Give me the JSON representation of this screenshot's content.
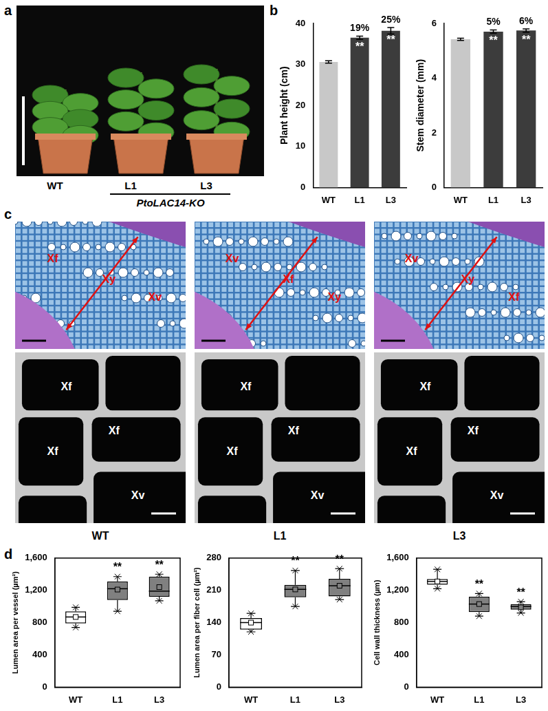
{
  "panel_labels": [
    "a",
    "b",
    "c",
    "d"
  ],
  "photo": {
    "genotypes": [
      "WT",
      "L1",
      "L3"
    ],
    "group_label": "PtoLAC14-KO"
  },
  "micrographs": [
    {
      "name": "WT",
      "light_labels": [
        "Xf",
        "Xy",
        "Xv"
      ],
      "sem_labels": [
        "Xf",
        "Xf",
        "Xf",
        "Xv"
      ]
    },
    {
      "name": "L1",
      "light_labels": [
        "Xv",
        "Xf",
        "Xy"
      ],
      "sem_labels": [
        "Xf",
        "Xf",
        "Xf",
        "Xv"
      ]
    },
    {
      "name": "L3",
      "light_labels": [
        "Xv",
        "Xy",
        "Xf"
      ],
      "sem_labels": [
        "Xf",
        "Xf",
        "Xf",
        "Xv"
      ]
    }
  ],
  "chart_data": [
    {
      "type": "bar",
      "categories": [
        "WT",
        "L1",
        "L3"
      ],
      "values": [
        30.6,
        36.5,
        38.2
      ],
      "errors": [
        0.3,
        0.4,
        0.8
      ],
      "colors": [
        "#c8c8c8",
        "#3c3c3c",
        "#3c3c3c"
      ],
      "y_label": "Plant height (cm)",
      "ylim": [
        0,
        40
      ],
      "yticks": [
        0,
        10,
        20,
        30,
        40
      ],
      "annotations": [
        null,
        "19%",
        "25%"
      ],
      "significance": [
        null,
        "**",
        "**"
      ]
    },
    {
      "type": "bar",
      "categories": [
        "WT",
        "L1",
        "L3"
      ],
      "values": [
        5.42,
        5.7,
        5.74
      ],
      "errors": [
        0.04,
        0.06,
        0.06
      ],
      "colors": [
        "#c8c8c8",
        "#3c3c3c",
        "#3c3c3c"
      ],
      "y_label": "Stem diameter (mm)",
      "ylim": [
        0,
        6
      ],
      "yticks": [
        0,
        2,
        4,
        6
      ],
      "annotations": [
        null,
        "5%",
        "6%"
      ],
      "significance": [
        null,
        "**",
        "**"
      ]
    },
    {
      "type": "box",
      "categories": [
        "WT",
        "L1",
        "L3"
      ],
      "boxes": [
        {
          "min": 740,
          "q1": 790,
          "median": 870,
          "q3": 940,
          "max": 990,
          "mean": 870
        },
        {
          "min": 940,
          "q1": 1080,
          "median": 1220,
          "q3": 1310,
          "max": 1370,
          "mean": 1210
        },
        {
          "min": 1070,
          "q1": 1120,
          "median": 1190,
          "q3": 1370,
          "max": 1400,
          "mean": 1240
        }
      ],
      "colors": [
        "#ffffff",
        "#808080",
        "#808080"
      ],
      "y_label": "Lumen area per vessel (µm²)",
      "ylim": [
        0,
        1600
      ],
      "yticks": [
        0,
        400,
        800,
        1200,
        1600
      ],
      "significance": [
        null,
        "**",
        "**"
      ]
    },
    {
      "type": "box",
      "categories": [
        "WT",
        "L1",
        "L3"
      ],
      "boxes": [
        {
          "min": 120,
          "q1": 125,
          "median": 140,
          "q3": 150,
          "max": 160,
          "mean": 140
        },
        {
          "min": 175,
          "q1": 195,
          "median": 212,
          "q3": 222,
          "max": 253,
          "mean": 212
        },
        {
          "min": 190,
          "q1": 197,
          "median": 220,
          "q3": 235,
          "max": 257,
          "mean": 220
        }
      ],
      "colors": [
        "#ffffff",
        "#808080",
        "#808080"
      ],
      "y_label": "Lumen area per fiber cell (µm²)",
      "ylim": [
        0,
        280
      ],
      "yticks": [
        0,
        70,
        140,
        210,
        280
      ],
      "significance": [
        null,
        "**",
        "**"
      ]
    },
    {
      "type": "box",
      "categories": [
        "WT",
        "L1",
        "L3"
      ],
      "boxes": [
        {
          "min": 1220,
          "q1": 1270,
          "median": 1310,
          "q3": 1340,
          "max": 1460,
          "mean": 1310
        },
        {
          "min": 880,
          "q1": 930,
          "median": 1030,
          "q3": 1120,
          "max": 1160,
          "mean": 1030
        },
        {
          "min": 920,
          "q1": 960,
          "median": 1000,
          "q3": 1030,
          "max": 1060,
          "mean": 990
        }
      ],
      "colors": [
        "#ffffff",
        "#808080",
        "#808080"
      ],
      "y_label": "Cell wall thickness (µm)",
      "ylim": [
        0,
        1600
      ],
      "yticks": [
        0,
        400,
        800,
        1200,
        1600
      ],
      "significance": [
        null,
        "**",
        "**"
      ]
    }
  ]
}
